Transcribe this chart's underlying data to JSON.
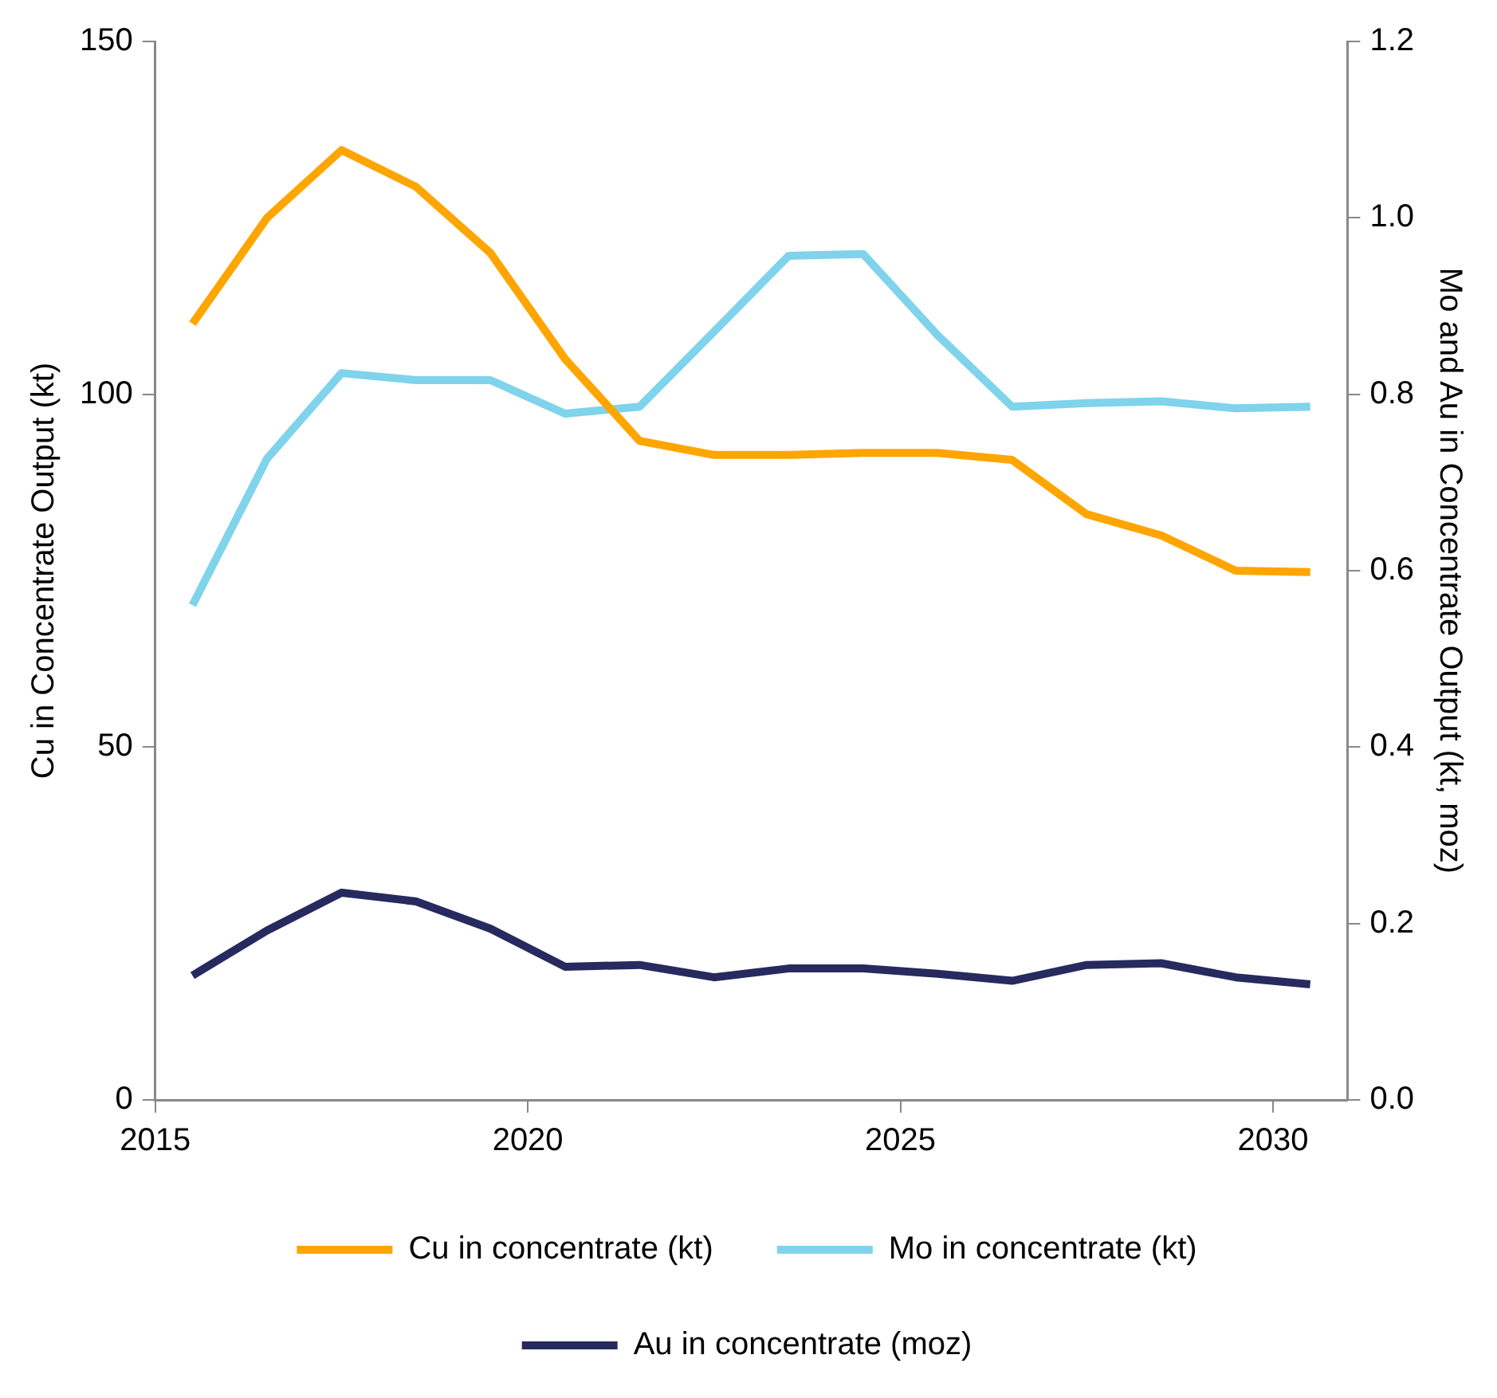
{
  "chart_data": {
    "type": "line",
    "ylabel": "Cu in Concentrate Output (kt)",
    "y2label": "Mo and Au in Concentrate Output (kt, moz)",
    "x": [
      2015.5,
      2016.5,
      2017.5,
      2018.5,
      2019.5,
      2020.5,
      2021.5,
      2022.5,
      2023.5,
      2024.5,
      2025.5,
      2026.5,
      2027.5,
      2028.5,
      2029.5,
      2030.5
    ],
    "xlim": [
      2015,
      2031
    ],
    "xticks": [
      2015,
      2020,
      2025,
      2030
    ],
    "ylim": [
      0,
      150
    ],
    "yticks": [
      0,
      50,
      100,
      150
    ],
    "y2lim": [
      0,
      1.2
    ],
    "y2ticks": [
      {
        "value": 0,
        "label": "0.0"
      },
      {
        "value": 0.2,
        "label": "0.2"
      },
      {
        "value": 0.4,
        "label": "0.4"
      },
      {
        "value": 0.6,
        "label": "0.6"
      },
      {
        "value": 0.8,
        "label": "0.8"
      },
      {
        "value": 1,
        "label": "1.0"
      },
      {
        "value": 1.2,
        "label": "1.2"
      }
    ],
    "grid": false,
    "legend": "bottom",
    "marker": "none",
    "line_style": "solid",
    "series": [
      {
        "name": "Cu in concentrate (kt)",
        "color": "#ffa500",
        "values": [
          110,
          125,
          134.6,
          129.4,
          120,
          105,
          93.4,
          91.4,
          91.4,
          91.7,
          91.7,
          90.7,
          83,
          80,
          75,
          74.8
        ]
      },
      {
        "name": "Mo in concentrate (kt)",
        "color": "#7fd3eb",
        "axis": "y2",
        "values": [
          0.561,
          0.727,
          0.824,
          0.816,
          0.816,
          0.778,
          0.786,
          0.871,
          0.957,
          0.959,
          0.867,
          0.786,
          0.79,
          0.792,
          0.784,
          0.786
        ]
      },
      {
        "name": "Au in concentrate (moz)",
        "color": "#262a5e",
        "axis": "y2",
        "values": [
          0.141,
          0.192,
          0.235,
          0.225,
          0.194,
          0.151,
          0.153,
          0.139,
          0.149,
          0.149,
          0.143,
          0.135,
          0.153,
          0.155,
          0.139,
          0.131
        ]
      }
    ]
  }
}
